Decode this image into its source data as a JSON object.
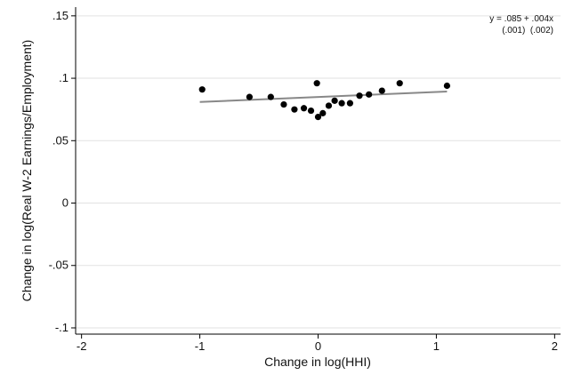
{
  "chart_data": {
    "type": "scatter",
    "title": "",
    "xlabel": "Change in log(HHI)",
    "ylabel": "Change in log(Real W-2 Earnings/Employment)",
    "xlim": [
      -2.05,
      2.05
    ],
    "ylim": [
      -0.105,
      0.157
    ],
    "x_ticks": [
      -2,
      -1,
      0,
      1,
      2
    ],
    "x_tick_labels": [
      "-2",
      "-1",
      "0",
      "1",
      "2"
    ],
    "y_ticks": [
      -0.1,
      -0.05,
      0,
      0.05,
      0.1,
      0.15
    ],
    "y_tick_labels": [
      "-.1",
      "-.05",
      "0",
      ".05",
      ".1",
      ".15"
    ],
    "grid": "horizontal",
    "marker_color": "#000000",
    "fit_color": "#888888",
    "series": [
      {
        "points": [
          {
            "x": -0.98,
            "y": 0.091
          },
          {
            "x": -0.58,
            "y": 0.085
          },
          {
            "x": -0.4,
            "y": 0.085
          },
          {
            "x": -0.29,
            "y": 0.079
          },
          {
            "x": -0.2,
            "y": 0.075
          },
          {
            "x": -0.12,
            "y": 0.076
          },
          {
            "x": -0.06,
            "y": 0.074
          },
          {
            "x": -0.01,
            "y": 0.096
          },
          {
            "x": 0.0,
            "y": 0.069
          },
          {
            "x": 0.04,
            "y": 0.072
          },
          {
            "x": 0.09,
            "y": 0.078
          },
          {
            "x": 0.14,
            "y": 0.082
          },
          {
            "x": 0.2,
            "y": 0.08
          },
          {
            "x": 0.27,
            "y": 0.08
          },
          {
            "x": 0.35,
            "y": 0.086
          },
          {
            "x": 0.43,
            "y": 0.087
          },
          {
            "x": 0.54,
            "y": 0.09
          },
          {
            "x": 0.69,
            "y": 0.096
          },
          {
            "x": 1.09,
            "y": 0.094
          }
        ]
      }
    ],
    "fit_line": {
      "intercept": 0.085,
      "slope": 0.004,
      "x_range": [
        -1,
        1.09
      ]
    },
    "annotation": {
      "equation": "y = .085 + .004x",
      "std_errors": "(.001)  (.002)"
    }
  }
}
